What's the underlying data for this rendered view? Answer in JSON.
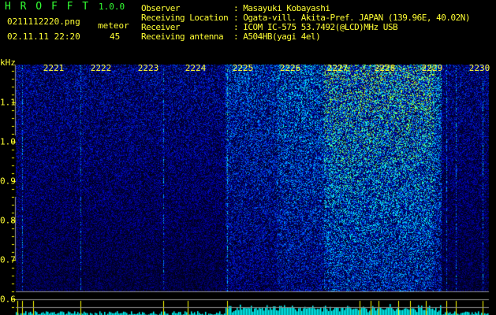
{
  "header": {
    "app_name": "H R O F F T",
    "version": "1.0.0",
    "filename": "0211112220.png",
    "datetime": "02.11.11 22:20",
    "meteor_label": "meteor",
    "meteor_count": "45",
    "info": [
      {
        "label": "Observer",
        "value": ": Masayuki Kobayashi"
      },
      {
        "label": "Receiving Location",
        "value": ": Ogata-vill. Akita-Pref. JAPAN (139.96E, 40.02N)"
      },
      {
        "label": "Receiver",
        "value": ": ICOM IC-575 53.7492(@LCD)MHz USB"
      },
      {
        "label": "Receiving antenna",
        "value": ": A504HB(yagi 4el)"
      }
    ]
  },
  "chart_data": {
    "type": "heatmap",
    "title": "",
    "ylabel": "kHz",
    "xlabel": "",
    "x_ticks": [
      "2221",
      "2222",
      "2223",
      "2224",
      "2225",
      "2226",
      "2227",
      "2228",
      "2229",
      "2230"
    ],
    "y_ticks": [
      "0.6",
      "0.7",
      "0.8",
      "0.9",
      "1.0",
      "1.1"
    ],
    "ylim": [
      0.58,
      1.19
    ],
    "colormap": [
      "#000010",
      "#0000c0",
      "#0080ff",
      "#00ffff",
      "#80ff40",
      "#ffff00",
      "#ff8000"
    ],
    "intense_region_minutes": [
      "2225",
      "2229"
    ],
    "histogram_colors": {
      "bars": "#00ffff",
      "meteor_spikes": "#ffff00"
    },
    "grid": false
  }
}
